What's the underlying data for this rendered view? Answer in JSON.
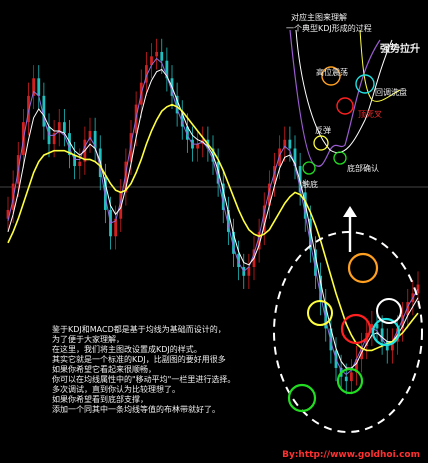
{
  "chart_data": {
    "type": "line",
    "title": "",
    "xlabel": "",
    "ylabel": "",
    "grid": false,
    "series": [
      {
        "color": "#ffffff",
        "style": "candles",
        "values": [
          360,
          372,
          385,
          400,
          412,
          420,
          412,
          398,
          390,
          395,
          400,
          395,
          385,
          380,
          382,
          392,
          396,
          388,
          375,
          360,
          348,
          356,
          368,
          382,
          395,
          408,
          418,
          426,
          430,
          432,
          428,
          420,
          412,
          404,
          398,
          392,
          388,
          390,
          392,
          388,
          382,
          372,
          360,
          350,
          340,
          334,
          330,
          334,
          342,
          350,
          362,
          372,
          380,
          388,
          392,
          388,
          380,
          368,
          356,
          342,
          330,
          318,
          306,
          296,
          288,
          284,
          282,
          286,
          292,
          298,
          304,
          308,
          306,
          300,
          296,
          300,
          306,
          312,
          318,
          322,
          326
        ]
      },
      {
        "color": "#8c6cd8",
        "style": "ma-fast",
        "values": [
          355,
          365,
          378,
          392,
          405,
          414,
          412,
          402,
          394,
          394,
          396,
          394,
          388,
          383,
          383,
          389,
          393,
          389,
          379,
          366,
          354,
          355,
          364,
          377,
          390,
          402,
          413,
          421,
          426,
          429,
          427,
          421,
          414,
          406,
          400,
          394,
          390,
          390,
          391,
          388,
          383,
          374,
          363,
          353,
          343,
          336,
          332,
          334,
          340,
          348,
          359,
          369,
          377,
          385,
          389,
          387,
          380,
          370,
          358,
          345,
          333,
          321,
          310,
          300,
          292,
          287,
          285,
          287,
          292,
          297,
          302,
          306,
          305,
          301,
          298,
          300,
          305,
          310,
          316,
          320,
          324
        ]
      },
      {
        "color": "#ffffff",
        "style": "ma-mid",
        "values": [
          350,
          358,
          368,
          380,
          392,
          402,
          406,
          403,
          398,
          396,
          396,
          395,
          391,
          387,
          385,
          387,
          390,
          388,
          382,
          372,
          362,
          358,
          361,
          370,
          381,
          393,
          404,
          413,
          419,
          423,
          424,
          421,
          416,
          410,
          404,
          398,
          394,
          392,
          391,
          389,
          385,
          378,
          369,
          359,
          349,
          341,
          336,
          335,
          338,
          344,
          353,
          362,
          371,
          379,
          384,
          385,
          381,
          373,
          363,
          351,
          339,
          327,
          316,
          306,
          297,
          291,
          288,
          288,
          290,
          295,
          299,
          303,
          304,
          302,
          300,
          300,
          303,
          307,
          312,
          316,
          320
        ]
      },
      {
        "color": "#ffff40",
        "style": "ma-slow",
        "values": [
          345,
          350,
          356,
          363,
          370,
          377,
          382,
          385,
          386,
          387,
          387,
          387,
          386,
          385,
          384,
          383,
          383,
          382,
          380,
          376,
          372,
          369,
          368,
          369,
          372,
          377,
          383,
          390,
          396,
          401,
          405,
          407,
          408,
          407,
          405,
          402,
          399,
          396,
          393,
          390,
          387,
          383,
          378,
          372,
          366,
          360,
          355,
          351,
          349,
          348,
          349,
          351,
          355,
          359,
          363,
          366,
          368,
          367,
          364,
          359,
          353,
          346,
          338,
          330,
          322,
          315,
          308,
          303,
          299,
          297,
          296,
          296,
          297,
          298,
          299,
          300,
          302,
          304,
          307,
          310,
          313
        ]
      }
    ]
  },
  "annotations": {
    "title_line1": "对应主图来理解",
    "title_line2": "一个典型KDJ形成的过程",
    "strong_up": "强势拉升",
    "high_shock": "高位震荡",
    "top_cross": "顶死叉",
    "bottom_wash": "回调洗盘",
    "bounce": "反弹",
    "bottom_divergence": "底部确认",
    "bottoming": "触底"
  },
  "notes": {
    "lines": [
      "鉴于KDJ和MACD都是基于均线为基础而设计的，",
      "为了便于大家理解，",
      "在这里，我们将主图改设置成KDJ的样式。",
      "其实它就是一个标准的KDJ，比副图的要好用很多",
      "如果你希望它看起来很顺畅，",
      "你可以在均线属性中的\"移动平均\"一栏里进行选择。",
      "多次调试，直到你认为比较理想了。",
      "如果你希望看到底部支撑，",
      "添加一个同其中一条均线等值的布林带就好了。"
    ]
  },
  "footer": {
    "credit": "By:http://www.goldhoi.com"
  },
  "colors": {
    "background": "#000000",
    "up_candle": "#d02020",
    "down_candle": "#20c0c0",
    "circle_green": "#22dd22",
    "circle_red": "#ff2020",
    "circle_cyan": "#20e0e0",
    "circle_orange": "#ffa020",
    "circle_yellow": "#ffff40",
    "arrow": "#ffffff"
  }
}
